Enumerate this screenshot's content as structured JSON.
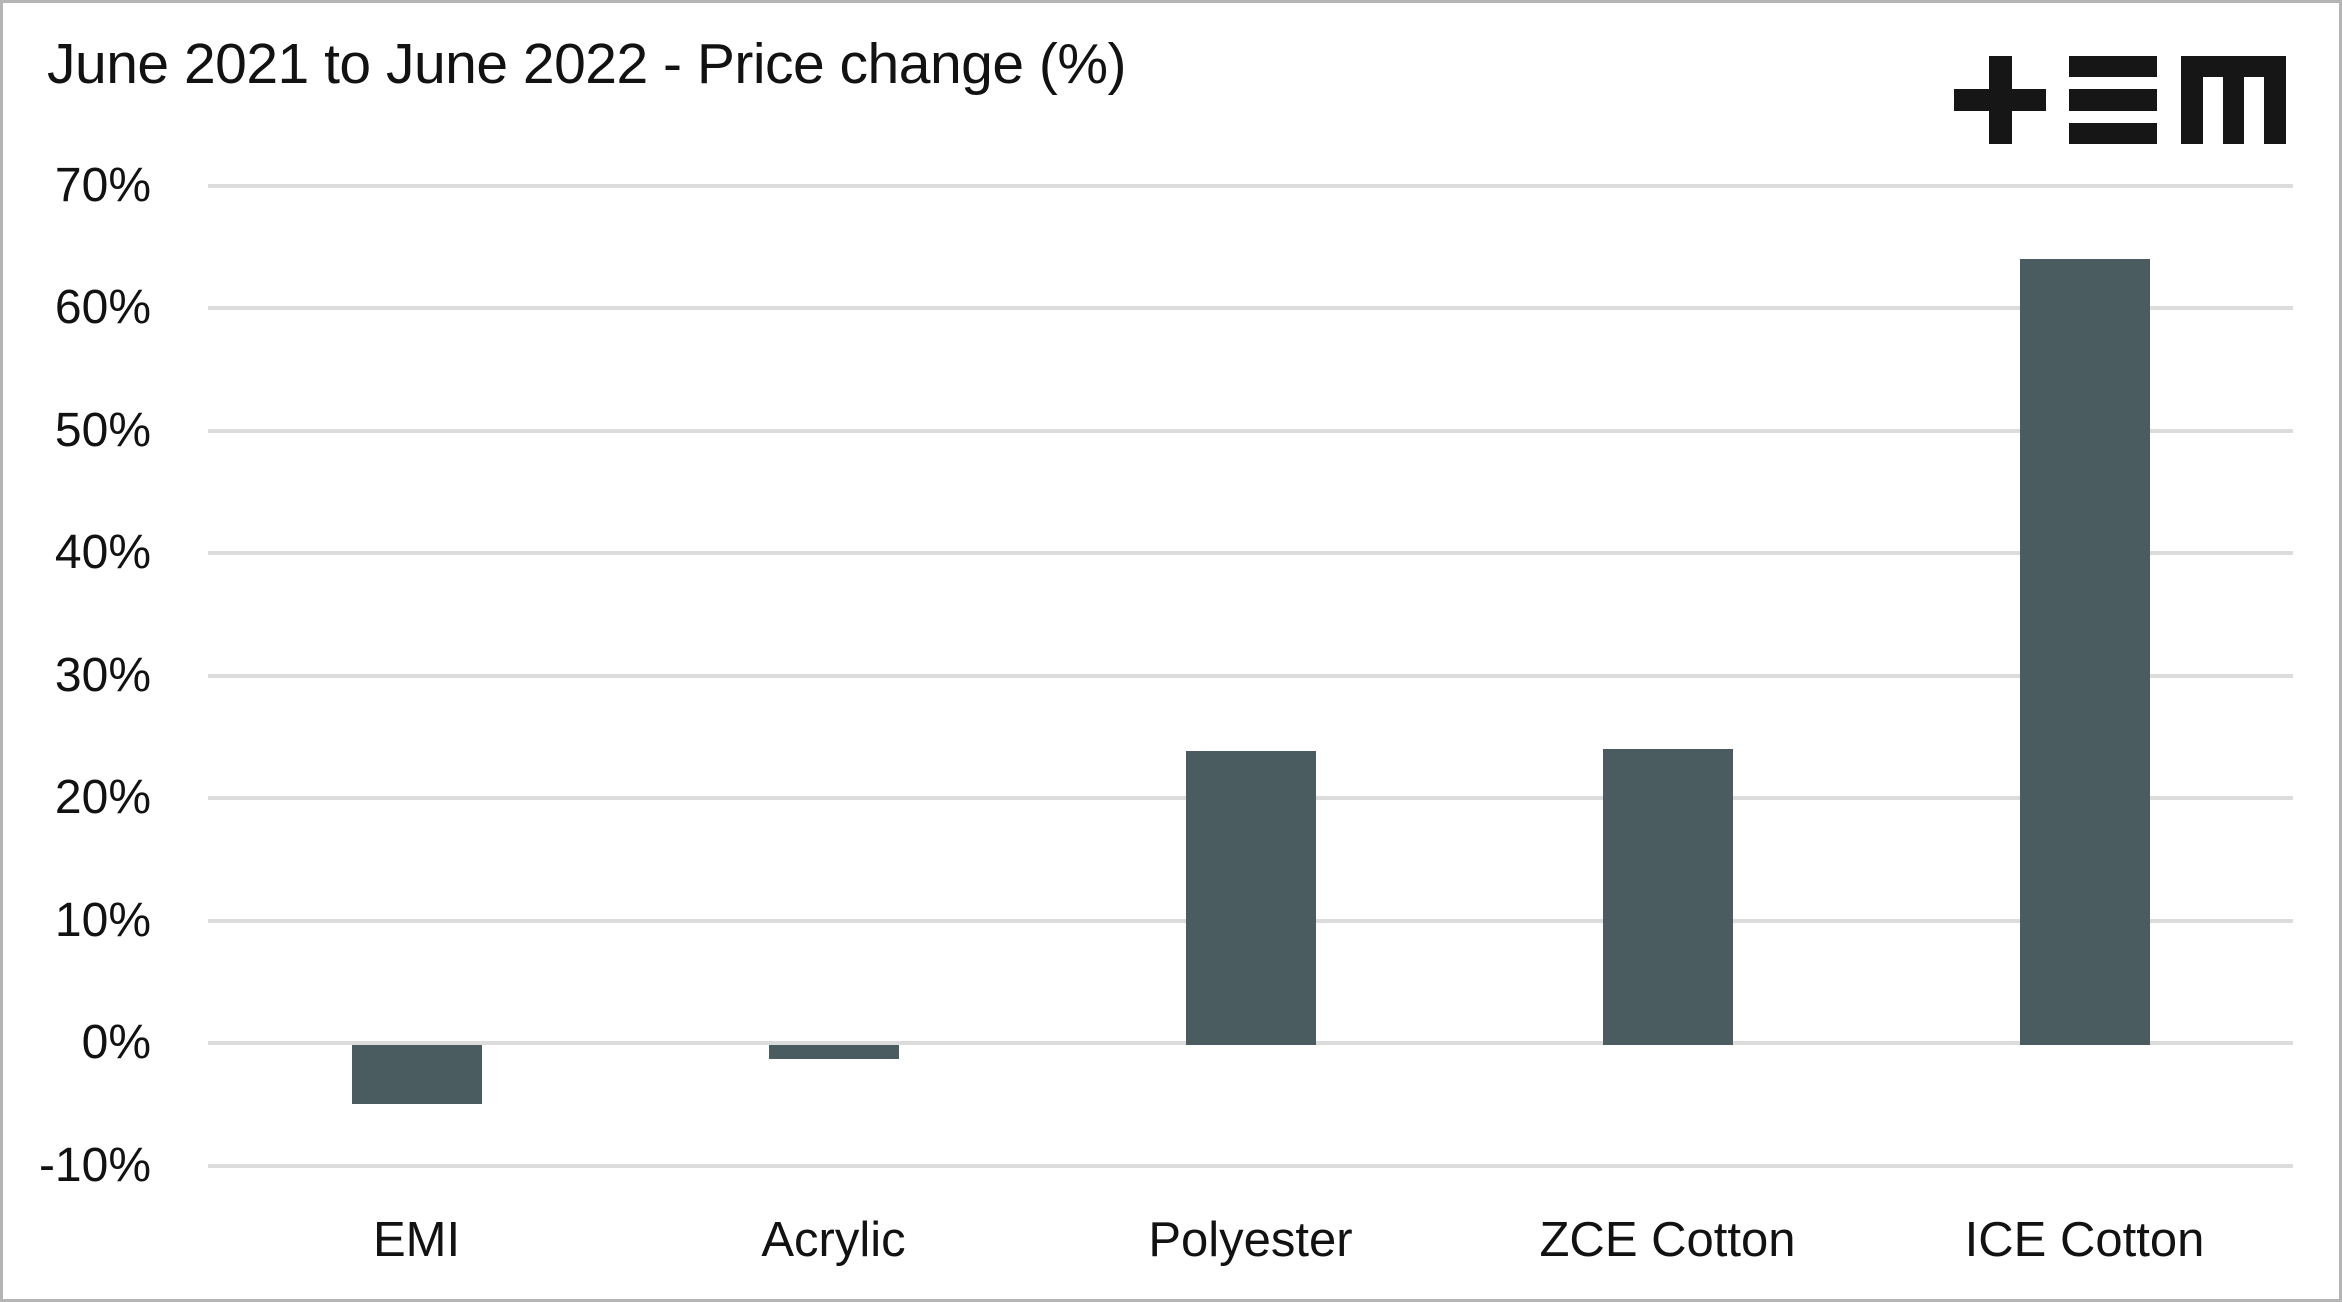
{
  "page": {
    "background": "#ffffff",
    "border_color": "#b5b5b5"
  },
  "header": {
    "title": "June 2021 to June 2022 - Price change (%)",
    "logo_icon": "tem-logo",
    "logo_color": "#161616"
  },
  "chart_data": {
    "type": "bar",
    "title": "June 2021 to June 2022 - Price change (%)",
    "categories": [
      "EMI",
      "Acrylic",
      "Polyester",
      "ZCE Cotton",
      "ICE Cotton"
    ],
    "values": [
      -5,
      -1.3,
      23.8,
      24,
      64
    ],
    "xlabel": "",
    "ylabel": "",
    "ylim": [
      -10,
      70
    ],
    "yticks": [
      70,
      60,
      50,
      40,
      30,
      20,
      10,
      0,
      -10
    ],
    "ytick_suffix": "%",
    "grid": "horizontal",
    "legend": false,
    "bar_color": "#4a5c60",
    "gridline_color": "#dcdcdc",
    "text_color": "#121212"
  }
}
